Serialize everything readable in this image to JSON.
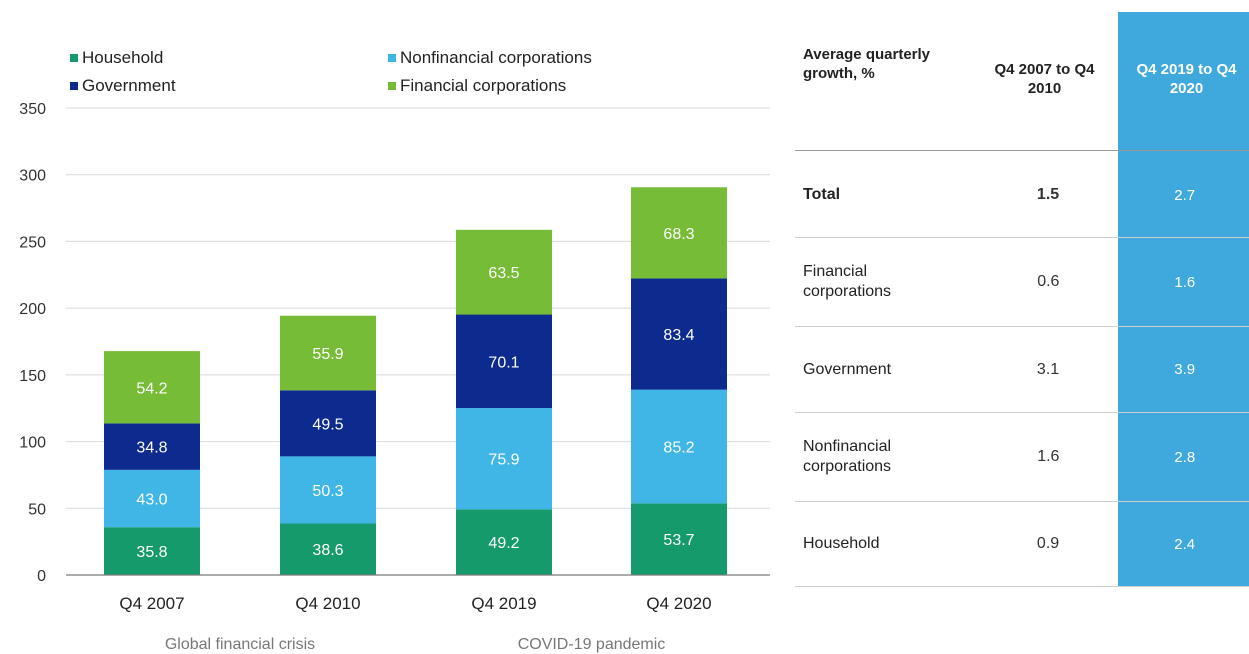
{
  "colors": {
    "household": "#159a6c",
    "nonfinancial": "#3fb6e6",
    "government": "#0d2a8f",
    "financial": "#77bc36",
    "highlight": "#3fa9dd"
  },
  "legend": {
    "household": "Household",
    "nonfinancial": "Nonfinancial corporations",
    "government": "Government",
    "financial": "Financial corporations"
  },
  "chart_data": {
    "type": "bar",
    "stacked": true,
    "categories": [
      "Q4 2007",
      "Q4 2010",
      "Q4 2019",
      "Q4 2020"
    ],
    "series": [
      {
        "name": "Household",
        "values": [
          35.8,
          38.6,
          49.2,
          53.7
        ]
      },
      {
        "name": "Nonfinancial corporations",
        "values": [
          43.0,
          50.3,
          75.9,
          85.2
        ]
      },
      {
        "name": "Government",
        "values": [
          34.8,
          49.5,
          70.1,
          83.4
        ]
      },
      {
        "name": "Financial corporations",
        "values": [
          54.2,
          55.9,
          63.5,
          68.3
        ]
      }
    ],
    "ylim": [
      0,
      350
    ],
    "yticks": [
      0,
      50,
      100,
      150,
      200,
      250,
      300,
      350
    ],
    "grid": true,
    "legend_position": "top",
    "group_labels": [
      {
        "label": "Global financial crisis",
        "categories": [
          "Q4 2007",
          "Q4 2010"
        ]
      },
      {
        "label": "COVID-19 pandemic",
        "categories": [
          "Q4 2019",
          "Q4 2020"
        ]
      }
    ]
  },
  "table": {
    "header_label": "Average quarterly growth, %",
    "col1_header": "Q4 2007 to Q4 2010",
    "col2_header": "Q4 2019 to Q4 2020",
    "rows": [
      {
        "label": "Total",
        "v1": "1.5",
        "v2": "2.7",
        "bold": true
      },
      {
        "label": "Financial corporations",
        "v1": "0.6",
        "v2": "1.6",
        "bold": false
      },
      {
        "label": "Government",
        "v1": "3.1",
        "v2": "3.9",
        "bold": false
      },
      {
        "label": "Nonfinancial corporations",
        "v1": "1.6",
        "v2": "2.8",
        "bold": false
      },
      {
        "label": "Household",
        "v1": "0.9",
        "v2": "2.4",
        "bold": false
      }
    ]
  }
}
